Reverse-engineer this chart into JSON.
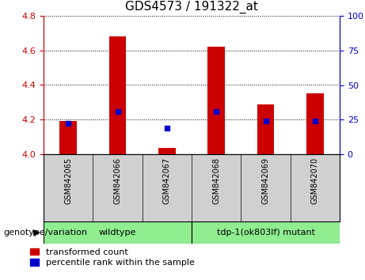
{
  "title": "GDS4573 / 191322_at",
  "samples": [
    "GSM842065",
    "GSM842066",
    "GSM842067",
    "GSM842068",
    "GSM842069",
    "GSM842070"
  ],
  "transformed_counts": [
    4.19,
    4.68,
    4.035,
    4.62,
    4.29,
    4.35
  ],
  "percentile_ranks": [
    22,
    31,
    19,
    31,
    24,
    24
  ],
  "ylim_left": [
    4.0,
    4.8
  ],
  "ylim_right": [
    0,
    100
  ],
  "yticks_left": [
    4.0,
    4.2,
    4.4,
    4.6,
    4.8
  ],
  "yticks_right": [
    0,
    25,
    50,
    75,
    100
  ],
  "group1_label": "wildtype",
  "group2_label": "tdp-1(ok803lf) mutant",
  "group_color": "#90EE90",
  "sample_bg_color": "#d0d0d0",
  "bar_color": "#CC0000",
  "point_color": "#0000CC",
  "grid_color": "black",
  "label_transformed": "transformed count",
  "label_percentile": "percentile rank within the sample",
  "genotype_label": "genotype/variation",
  "left_axis_color": "#CC0000",
  "right_axis_color": "#0000CC",
  "title_fontsize": 11,
  "tick_fontsize": 8,
  "sample_fontsize": 7,
  "legend_fontsize": 8,
  "group_fontsize": 8
}
